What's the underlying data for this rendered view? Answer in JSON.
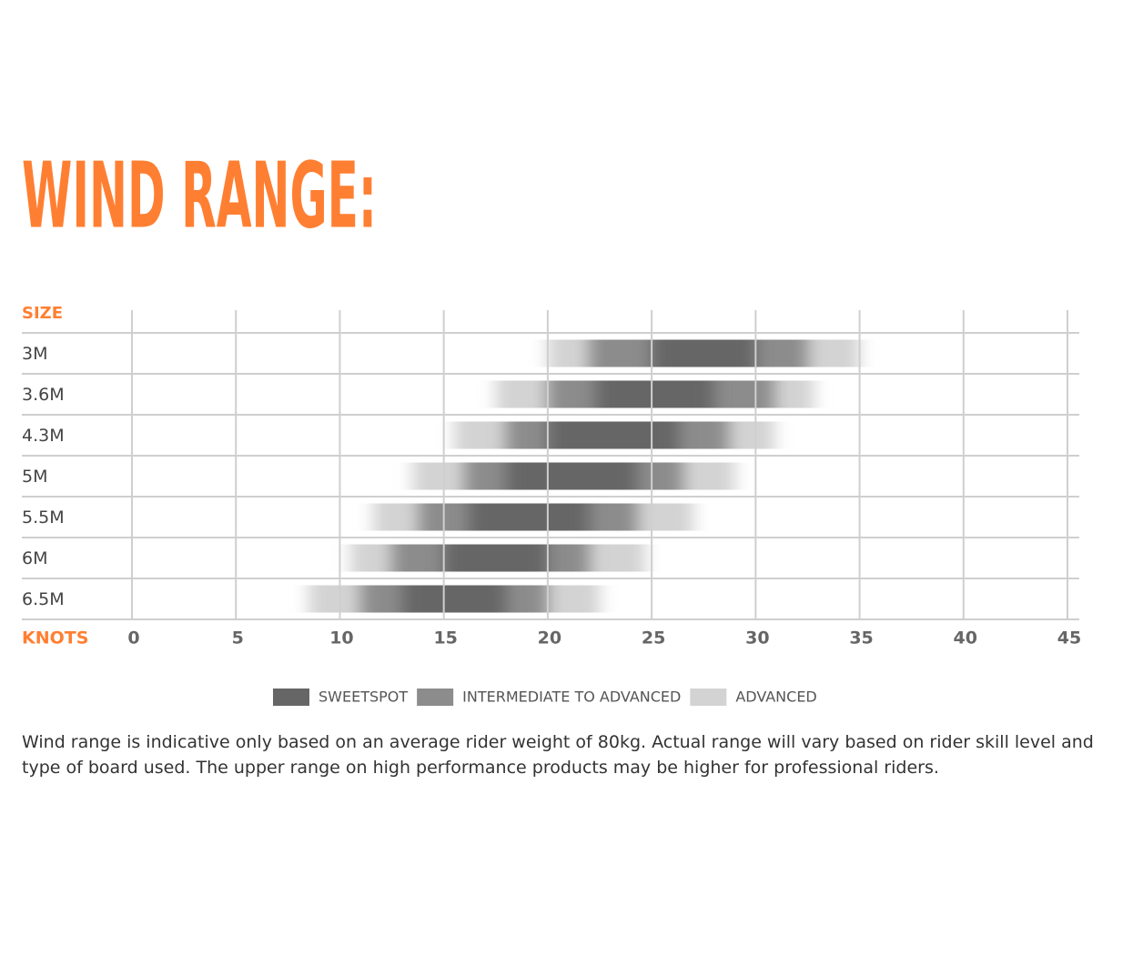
{
  "chart_data": {
    "type": "range-bar",
    "title": "WIND RANGE:",
    "y_label": "SIZE",
    "x_label": "KNOTS",
    "categories": [
      "3M",
      "3.6M",
      "4.3M",
      "5M",
      "5.5M",
      "6M",
      "6.5M"
    ],
    "series": [
      {
        "name": "SWEETSPOT",
        "color": "#666666",
        "low": [
          25,
          22.3,
          20,
          18,
          16.2,
          15,
          13
        ],
        "high": [
          30,
          28,
          26.3,
          24.3,
          22,
          20,
          18
        ]
      },
      {
        "name": "INTERMEDIATE TO ADVANCED",
        "color": "#8c8c8c",
        "low": [
          22,
          20,
          18,
          16,
          13.8,
          12.5,
          11
        ],
        "high": [
          32.5,
          30.9,
          28.7,
          26.5,
          24.3,
          22,
          20
        ]
      },
      {
        "name": "ADVANCED",
        "color": "#d3d3d3",
        "low": [
          20,
          17.5,
          15.5,
          13.5,
          11.6,
          10.5,
          8.5
        ],
        "high": [
          35,
          32.8,
          30.9,
          29,
          27,
          24.7,
          22.5
        ]
      }
    ],
    "xlim": [
      0,
      45
    ],
    "xticks": [
      0,
      5,
      10,
      15,
      20,
      25,
      30,
      35,
      40,
      45
    ],
    "grid": true,
    "note": "Wind range is indicative only based on an average rider weight of 80kg. Actual range will vary based on rider skill level and type of board used. The upper range on high performance products may be higher for professional riders."
  }
}
